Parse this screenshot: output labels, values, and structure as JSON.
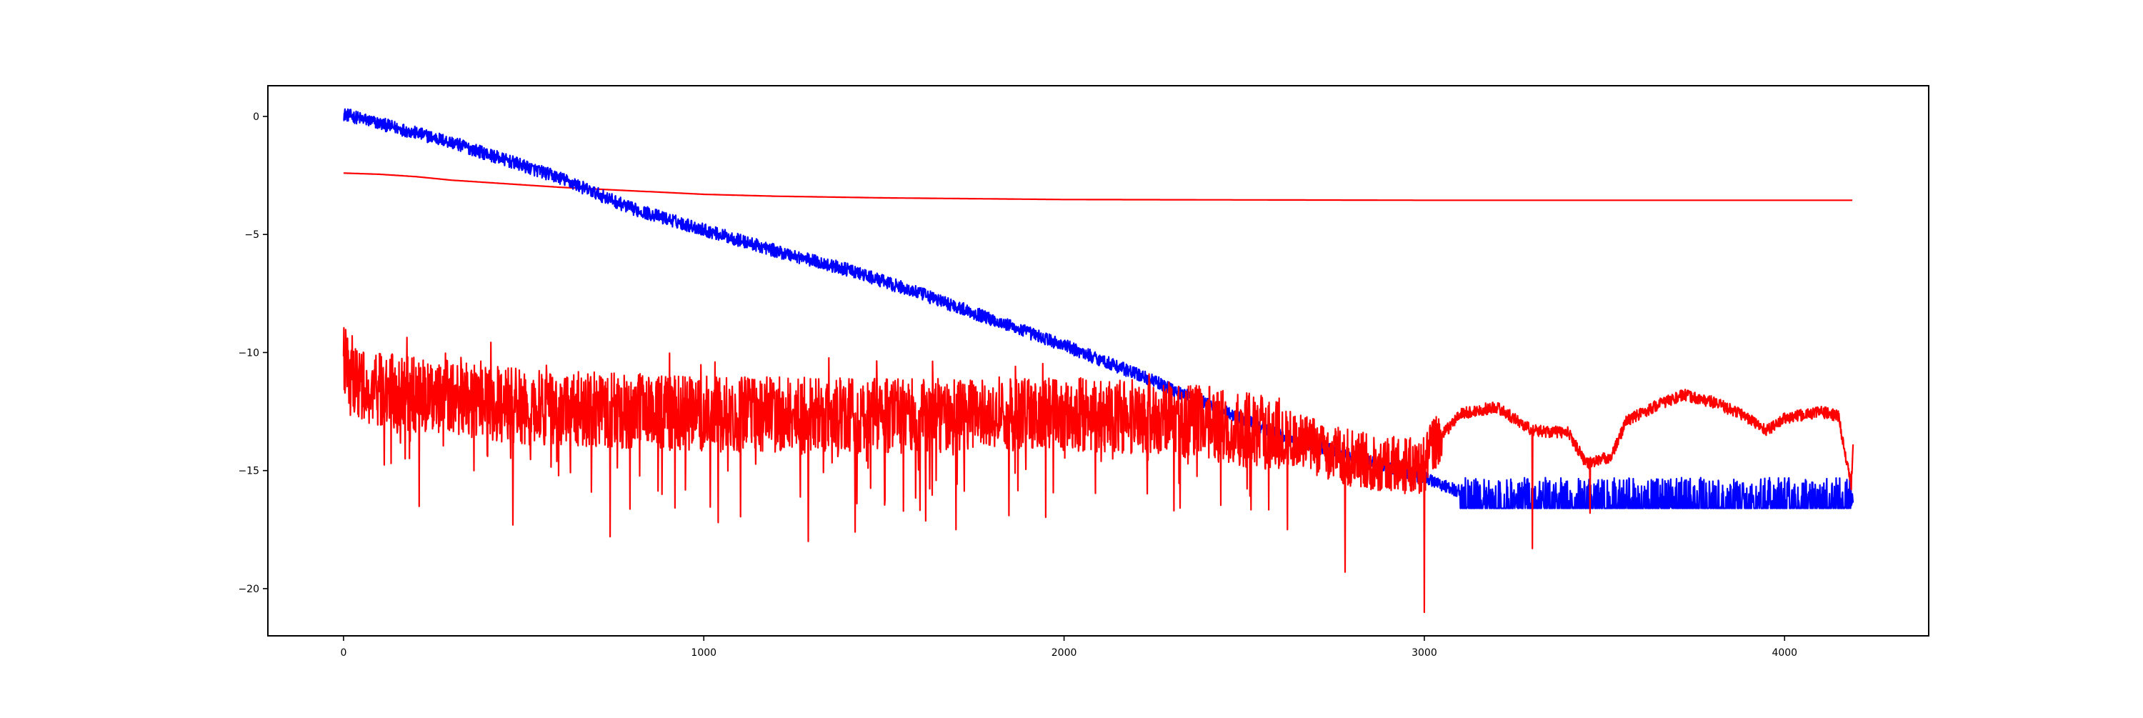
{
  "chart_data": {
    "type": "line",
    "title": "",
    "xlabel": "",
    "ylabel": "",
    "xlim": [
      -210,
      4400
    ],
    "ylim": [
      -22,
      1.3
    ],
    "grid": false,
    "legend": "none",
    "x_ticks": [
      {
        "value": 0,
        "label": "0"
      },
      {
        "value": 1000,
        "label": "1000"
      },
      {
        "value": 2000,
        "label": "2000"
      },
      {
        "value": 3000,
        "label": "3000"
      },
      {
        "value": 4000,
        "label": "4000"
      }
    ],
    "y_ticks": [
      {
        "value": 0,
        "label": "0"
      },
      {
        "value": -5,
        "label": "−5"
      },
      {
        "value": -10,
        "label": "−10"
      },
      {
        "value": -15,
        "label": "−15"
      },
      {
        "value": -20,
        "label": "−20"
      }
    ],
    "series": [
      {
        "color": "#ff0000",
        "style": "smooth",
        "points": [
          [
            0,
            -2.4
          ],
          [
            100,
            -2.45
          ],
          [
            200,
            -2.55
          ],
          [
            300,
            -2.7
          ],
          [
            400,
            -2.8
          ],
          [
            500,
            -2.9
          ],
          [
            600,
            -3.0
          ],
          [
            800,
            -3.15
          ],
          [
            1000,
            -3.3
          ],
          [
            1200,
            -3.38
          ],
          [
            1500,
            -3.45
          ],
          [
            2000,
            -3.52
          ],
          [
            3000,
            -3.55
          ],
          [
            4190,
            -3.55
          ]
        ]
      },
      {
        "color": "#0000ff",
        "style": "noisy",
        "points": [
          [
            0,
            0.1
          ],
          [
            300,
            -1.1
          ],
          [
            600,
            -2.6
          ],
          [
            800,
            -3.9
          ],
          [
            1000,
            -4.8
          ],
          [
            1200,
            -5.7
          ],
          [
            1400,
            -6.5
          ],
          [
            1600,
            -7.5
          ],
          [
            1800,
            -8.6
          ],
          [
            2000,
            -9.7
          ],
          [
            2200,
            -10.9
          ],
          [
            2400,
            -12.2
          ],
          [
            2600,
            -13.5
          ],
          [
            2800,
            -14.4
          ],
          [
            3000,
            -15.3
          ],
          [
            3100,
            -15.9
          ],
          [
            4190,
            -16.0
          ]
        ],
        "floor": [
          3100,
          -16.6,
          -15.3
        ]
      },
      {
        "color": "#ff0000",
        "style": "noisy",
        "points": [
          [
            0,
            -10.2
          ],
          [
            50,
            -11.5
          ],
          [
            500,
            -12.3
          ],
          [
            1000,
            -12.6
          ],
          [
            1500,
            -12.7
          ],
          [
            2000,
            -12.6
          ],
          [
            2300,
            -12.8
          ],
          [
            2600,
            -13.5
          ],
          [
            2800,
            -14.5
          ],
          [
            2950,
            -14.8
          ],
          [
            3000,
            -14.8
          ],
          [
            3020,
            -14.0
          ],
          [
            3050,
            -13.5
          ],
          [
            3100,
            -12.6
          ],
          [
            3200,
            -12.3
          ],
          [
            3300,
            -13.3
          ],
          [
            3400,
            -13.4
          ],
          [
            3450,
            -14.7
          ],
          [
            3520,
            -14.4
          ],
          [
            3560,
            -12.9
          ],
          [
            3650,
            -12.2
          ],
          [
            3720,
            -11.8
          ],
          [
            3800,
            -12.1
          ],
          [
            3880,
            -12.6
          ],
          [
            3950,
            -13.3
          ],
          [
            4000,
            -12.8
          ],
          [
            4100,
            -12.5
          ],
          [
            4150,
            -12.7
          ],
          [
            4170,
            -14.5
          ],
          [
            4185,
            -15.6
          ],
          [
            4190,
            -13.8
          ]
        ],
        "spikes": [
          [
            470,
            -17.3
          ],
          [
            740,
            -17.8
          ],
          [
            1040,
            -17.2
          ],
          [
            1290,
            -18.0
          ],
          [
            1420,
            -17.6
          ],
          [
            1700,
            -17.5
          ],
          [
            2620,
            -17.5
          ],
          [
            2780,
            -19.3
          ],
          [
            3000,
            -21.0
          ],
          [
            3300,
            -18.3
          ],
          [
            3460,
            -16.8
          ]
        ]
      }
    ]
  }
}
